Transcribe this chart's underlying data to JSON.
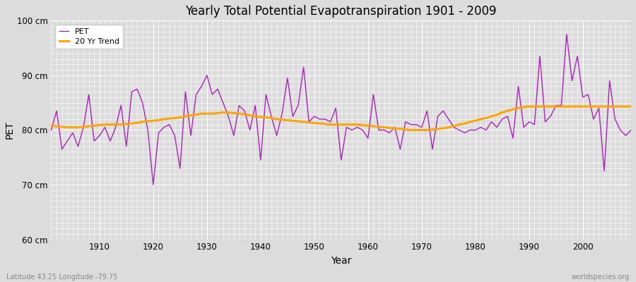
{
  "title": "Yearly Total Potential Evapotranspiration 1901 - 2009",
  "xlabel": "Year",
  "ylabel": "PET",
  "subtitle_left": "Latitude 43.25 Longitude -79.75",
  "subtitle_right": "worldspecies.org",
  "start_year": 1901,
  "end_year": 2009,
  "ylim": [
    60,
    100
  ],
  "yticks": [
    60,
    70,
    80,
    90,
    100
  ],
  "ytick_labels": [
    "60 cm",
    "70 cm",
    "80 cm",
    "90 cm",
    "100 cm"
  ],
  "xticks": [
    1910,
    1920,
    1930,
    1940,
    1950,
    1960,
    1970,
    1980,
    1990,
    2000
  ],
  "pet_color": "#AA22BB",
  "trend_color": "#FFA500",
  "bg_color": "#DCDCDC",
  "grid_color": "#FFFFFF",
  "pet_linewidth": 1.0,
  "trend_linewidth": 2.2,
  "pet_values": [
    80.0,
    83.5,
    76.5,
    78.0,
    79.5,
    77.0,
    80.5,
    86.5,
    78.0,
    79.0,
    80.5,
    78.0,
    80.5,
    84.5,
    77.0,
    87.0,
    87.5,
    85.0,
    80.0,
    70.0,
    79.5,
    80.5,
    81.0,
    79.0,
    73.0,
    87.0,
    79.0,
    86.5,
    88.0,
    90.0,
    86.5,
    87.5,
    85.0,
    82.5,
    79.0,
    84.5,
    83.5,
    80.0,
    84.5,
    74.5,
    86.5,
    82.5,
    79.0,
    83.0,
    89.5,
    82.5,
    84.5,
    91.5,
    81.5,
    82.5,
    82.0,
    82.0,
    81.5,
    84.0,
    74.5,
    80.5,
    80.0,
    80.5,
    80.0,
    78.5,
    86.5,
    80.0,
    80.0,
    79.5,
    80.5,
    76.5,
    81.5,
    81.0,
    81.0,
    80.5,
    83.5,
    76.5,
    82.5,
    83.5,
    82.0,
    80.5,
    80.0,
    79.5,
    80.0,
    80.0,
    80.5,
    80.0,
    81.5,
    80.5,
    82.0,
    82.5,
    78.5,
    88.0,
    80.5,
    81.5,
    81.0,
    93.5,
    81.5,
    82.5,
    84.5,
    84.5,
    97.5,
    89.0,
    93.5,
    86.0,
    86.5,
    82.0,
    84.0,
    72.5,
    89.0,
    82.0,
    80.0,
    79.0,
    80.0
  ],
  "trend_values": [
    80.8,
    80.7,
    80.6,
    80.5,
    80.5,
    80.5,
    80.6,
    80.7,
    80.8,
    80.9,
    81.0,
    81.0,
    81.0,
    81.0,
    81.1,
    81.2,
    81.3,
    81.5,
    81.6,
    81.7,
    81.8,
    82.0,
    82.1,
    82.2,
    82.3,
    82.5,
    82.7,
    82.8,
    83.0,
    83.0,
    83.0,
    83.1,
    83.2,
    83.2,
    83.1,
    83.0,
    82.9,
    82.7,
    82.5,
    82.4,
    82.3,
    82.2,
    82.0,
    81.9,
    81.8,
    81.7,
    81.6,
    81.5,
    81.4,
    81.3,
    81.2,
    81.1,
    81.0,
    81.0,
    81.0,
    81.0,
    81.0,
    81.0,
    80.9,
    80.8,
    80.7,
    80.6,
    80.5,
    80.4,
    80.3,
    80.2,
    80.1,
    80.0,
    80.0,
    80.0,
    80.0,
    80.1,
    80.2,
    80.3,
    80.5,
    80.7,
    81.0,
    81.2,
    81.5,
    81.7,
    82.0,
    82.2,
    82.5,
    82.8,
    83.2,
    83.5,
    83.8,
    84.0,
    84.2,
    84.3,
    84.3,
    84.3,
    84.3,
    84.3,
    84.3,
    84.3,
    84.3,
    84.3,
    84.3,
    84.3,
    84.3,
    84.3,
    84.3,
    84.3,
    84.3,
    84.3,
    84.3,
    84.3,
    84.3
  ]
}
